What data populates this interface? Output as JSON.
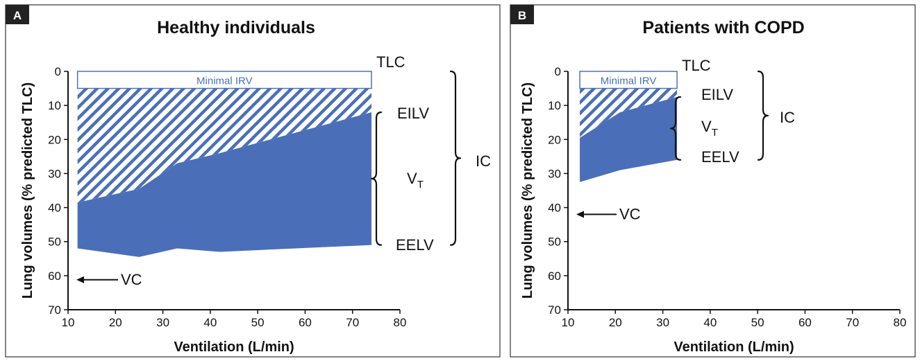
{
  "chart_data": [
    {
      "type": "area",
      "panel_label": "A",
      "title": "Healthy individuals",
      "xlabel": "Ventilation (L/min)",
      "ylabel": "Lung volumes (% predicted TLC)",
      "xlim": [
        10,
        80
      ],
      "ylim": [
        0,
        70
      ],
      "y_inverted": true,
      "xticks": [
        10,
        20,
        30,
        40,
        50,
        60,
        70,
        80
      ],
      "yticks": [
        0,
        10,
        20,
        30,
        40,
        50,
        60,
        70
      ],
      "minimal_irv_label": "Minimal IRV",
      "tlc": {
        "x": [
          12,
          74
        ],
        "y": 0
      },
      "minimal_irv_level": 5,
      "series": [
        {
          "name": "EILV",
          "x": [
            12,
            25,
            33,
            42,
            74
          ],
          "y": [
            38.5,
            34.5,
            27,
            24,
            12
          ]
        },
        {
          "name": "EELV",
          "x": [
            12,
            25,
            33,
            42,
            74
          ],
          "y": [
            52,
            54.5,
            52,
            53,
            51
          ]
        }
      ],
      "vc": 61.2,
      "annotations": {
        "tlc": "TLC",
        "eilv": "EILV",
        "vt": "V",
        "vt_sub": "T",
        "eelv": "EELV",
        "ic": "IC",
        "vc": "VC"
      },
      "colors": {
        "vt_fill": "#4a6fb8",
        "irv_outline": "#4a72b8"
      }
    },
    {
      "type": "area",
      "panel_label": "B",
      "title": "Patients with COPD",
      "xlabel": "Ventilation (L/min)",
      "ylabel": "Lung volumes (% predicted TLC)",
      "xlim": [
        10,
        80
      ],
      "ylim": [
        0,
        70
      ],
      "y_inverted": true,
      "xticks": [
        10,
        20,
        30,
        40,
        50,
        60,
        70,
        80
      ],
      "yticks": [
        0,
        10,
        20,
        30,
        40,
        50,
        60,
        70
      ],
      "minimal_irv_label": "Minimal IRV",
      "tlc": {
        "x": [
          12.5,
          33
        ],
        "y": 0
      },
      "minimal_irv_level": 5,
      "series": [
        {
          "name": "EILV",
          "x": [
            12.5,
            21,
            33
          ],
          "y": [
            19.5,
            12,
            7.5
          ]
        },
        {
          "name": "EELV",
          "x": [
            12.5,
            21,
            33
          ],
          "y": [
            32.5,
            29,
            26
          ]
        }
      ],
      "vc": 42,
      "annotations": {
        "tlc": "TLC",
        "eilv": "EILV",
        "vt": "V",
        "vt_sub": "T",
        "eelv": "EELV",
        "ic": "IC",
        "vc": "VC"
      },
      "colors": {
        "vt_fill": "#4a6fb8",
        "irv_outline": "#4a72b8"
      }
    }
  ]
}
